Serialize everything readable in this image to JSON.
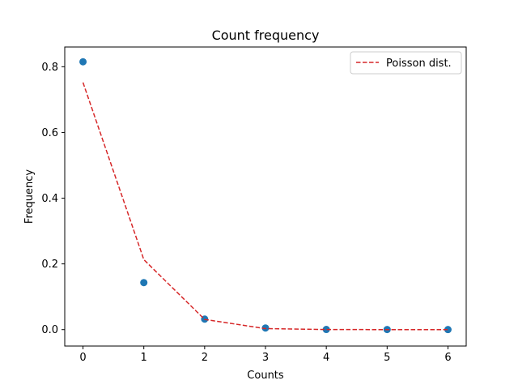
{
  "chart_data": {
    "type": "scatter",
    "title": "Count frequency",
    "xlabel": "Counts",
    "ylabel": "Frequency",
    "xlim": [
      -0.3,
      6.3
    ],
    "ylim": [
      -0.05,
      0.86
    ],
    "xticks": [
      0,
      1,
      2,
      3,
      4,
      5,
      6
    ],
    "yticks": [
      0.0,
      0.2,
      0.4,
      0.6,
      0.8
    ],
    "ytick_labels": [
      "0.0",
      "0.2",
      "0.4",
      "0.6",
      "0.8"
    ],
    "grid": false,
    "legend_position": "top-right",
    "series": [
      {
        "kind": "scatter",
        "color": "#1f77b4",
        "x": [
          0,
          1,
          2,
          3,
          4,
          5,
          6
        ],
        "y": [
          0.815,
          0.143,
          0.032,
          0.005,
          0.0005,
          0.0003,
          0.0002
        ]
      },
      {
        "name": "Poisson dist.",
        "kind": "line",
        "style": "dashed",
        "color": "#d62728",
        "x": [
          0,
          1,
          2,
          3,
          4,
          5,
          6
        ],
        "y": [
          0.752,
          0.213,
          0.031,
          0.003,
          0.0003,
          0.0,
          0.0
        ]
      }
    ]
  }
}
